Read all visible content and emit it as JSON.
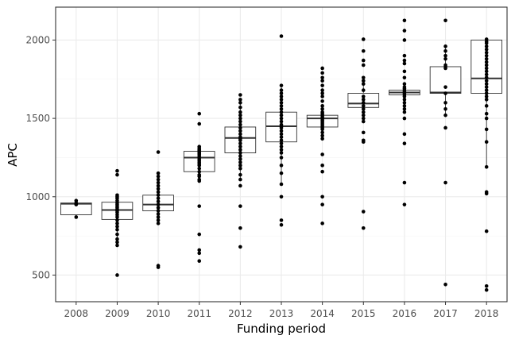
{
  "chart_data": {
    "type": "box",
    "xlabel": "Funding period",
    "ylabel": "APC",
    "ylim": [
      330,
      2210
    ],
    "yticks": [
      500,
      1000,
      1500,
      2000
    ],
    "categories": [
      "2008",
      "2009",
      "2010",
      "2011",
      "2012",
      "2013",
      "2014",
      "2015",
      "2016",
      "2017",
      "2018"
    ],
    "boxes": [
      {
        "category": "2008",
        "q1": 885,
        "median": 955,
        "q3": 960,
        "whisker_low": 865,
        "whisker_high": 970
      },
      {
        "category": "2009",
        "q1": 855,
        "median": 915,
        "q3": 965,
        "whisker_low": 690,
        "whisker_high": 1015
      },
      {
        "category": "2010",
        "q1": 910,
        "median": 950,
        "q3": 1010,
        "whisker_low": 830,
        "whisker_high": 1140
      },
      {
        "category": "2011",
        "q1": 1160,
        "median": 1250,
        "q3": 1290,
        "whisker_low": 1100,
        "whisker_high": 1320
      },
      {
        "category": "2012",
        "q1": 1280,
        "median": 1375,
        "q3": 1445,
        "whisker_low": 1110,
        "whisker_high": 1600
      },
      {
        "category": "2013",
        "q1": 1350,
        "median": 1450,
        "q3": 1540,
        "whisker_low": 1090,
        "whisker_high": 1710
      },
      {
        "category": "2014",
        "q1": 1445,
        "median": 1500,
        "q3": 1520,
        "whisker_low": 1370,
        "whisker_high": 1575
      },
      {
        "category": "2015",
        "q1": 1570,
        "median": 1595,
        "q3": 1660,
        "whisker_low": 1480,
        "whisker_high": 1750
      },
      {
        "category": "2016",
        "q1": 1650,
        "median": 1665,
        "q3": 1680,
        "whisker_low": 1640,
        "whisker_high": 1700
      },
      {
        "category": "2017",
        "q1": 1660,
        "median": 1665,
        "q3": 1830,
        "whisker_low": 1520,
        "whisker_high": 1960
      },
      {
        "category": "2018",
        "q1": 1660,
        "median": 1755,
        "q3": 2000,
        "whisker_low": 1190,
        "whisker_high": 2000
      }
    ],
    "points": [
      {
        "category": "2008",
        "values": [
          975,
          960,
          955,
          950,
          870
        ]
      },
      {
        "category": "2009",
        "values": [
          1165,
          1140,
          1010,
          1000,
          990,
          975,
          960,
          950,
          940,
          930,
          920,
          910,
          900,
          885,
          870,
          850,
          830,
          810,
          790,
          760,
          730,
          710,
          690,
          500
        ]
      },
      {
        "category": "2010",
        "values": [
          1285,
          1150,
          1130,
          1110,
          1090,
          1070,
          1050,
          1030,
          1010,
          990,
          970,
          950,
          930,
          910,
          890,
          870,
          850,
          830,
          560,
          550
        ]
      },
      {
        "category": "2011",
        "values": [
          1530,
          1465,
          1320,
          1310,
          1300,
          1295,
          1290,
          1285,
          1280,
          1275,
          1270,
          1260,
          1250,
          1240,
          1230,
          1220,
          1210,
          1200,
          1180,
          1160,
          1140,
          1130,
          1110,
          1100,
          940,
          760,
          660,
          640,
          590
        ]
      },
      {
        "category": "2012",
        "values": [
          1650,
          1620,
          1600,
          1570,
          1540,
          1520,
          1500,
          1480,
          1460,
          1440,
          1420,
          1400,
          1380,
          1370,
          1360,
          1340,
          1320,
          1300,
          1280,
          1260,
          1240,
          1220,
          1200,
          1180,
          1140,
          1110,
          1070,
          940,
          800,
          680
        ]
      },
      {
        "category": "2013",
        "values": [
          2025,
          1710,
          1680,
          1660,
          1640,
          1620,
          1600,
          1580,
          1560,
          1540,
          1520,
          1500,
          1480,
          1460,
          1450,
          1440,
          1420,
          1400,
          1380,
          1360,
          1340,
          1320,
          1300,
          1280,
          1250,
          1200,
          1150,
          1080,
          1000,
          850,
          820
        ]
      },
      {
        "category": "2014",
        "values": [
          1820,
          1790,
          1760,
          1740,
          1710,
          1680,
          1660,
          1640,
          1610,
          1580,
          1560,
          1540,
          1530,
          1520,
          1510,
          1500,
          1490,
          1480,
          1470,
          1460,
          1450,
          1440,
          1430,
          1410,
          1390,
          1370,
          1270,
          1200,
          1160,
          1000,
          950,
          830
        ]
      },
      {
        "category": "2015",
        "values": [
          2005,
          1930,
          1870,
          1840,
          1760,
          1740,
          1720,
          1680,
          1640,
          1620,
          1600,
          1580,
          1560,
          1540,
          1520,
          1500,
          1480,
          1410,
          1360,
          1350,
          905,
          800
        ]
      },
      {
        "category": "2016",
        "values": [
          2125,
          2060,
          2000,
          1900,
          1870,
          1850,
          1800,
          1760,
          1720,
          1700,
          1690,
          1680,
          1670,
          1660,
          1650,
          1640,
          1620,
          1600,
          1580,
          1560,
          1540,
          1500,
          1400,
          1340,
          1090,
          950
        ]
      },
      {
        "category": "2017",
        "values": [
          2125,
          1960,
          1930,
          1900,
          1880,
          1840,
          1830,
          1820,
          1700,
          1660,
          1600,
          1560,
          1520,
          1440,
          1090,
          440
        ]
      },
      {
        "category": "2018",
        "values": [
          2005,
          1990,
          1980,
          1960,
          1940,
          1920,
          1900,
          1880,
          1860,
          1840,
          1820,
          1800,
          1780,
          1760,
          1740,
          1720,
          1700,
          1680,
          1660,
          1640,
          1620,
          1580,
          1530,
          1500,
          1430,
          1350,
          1190,
          1030,
          1020,
          780,
          430,
          405
        ]
      }
    ]
  }
}
